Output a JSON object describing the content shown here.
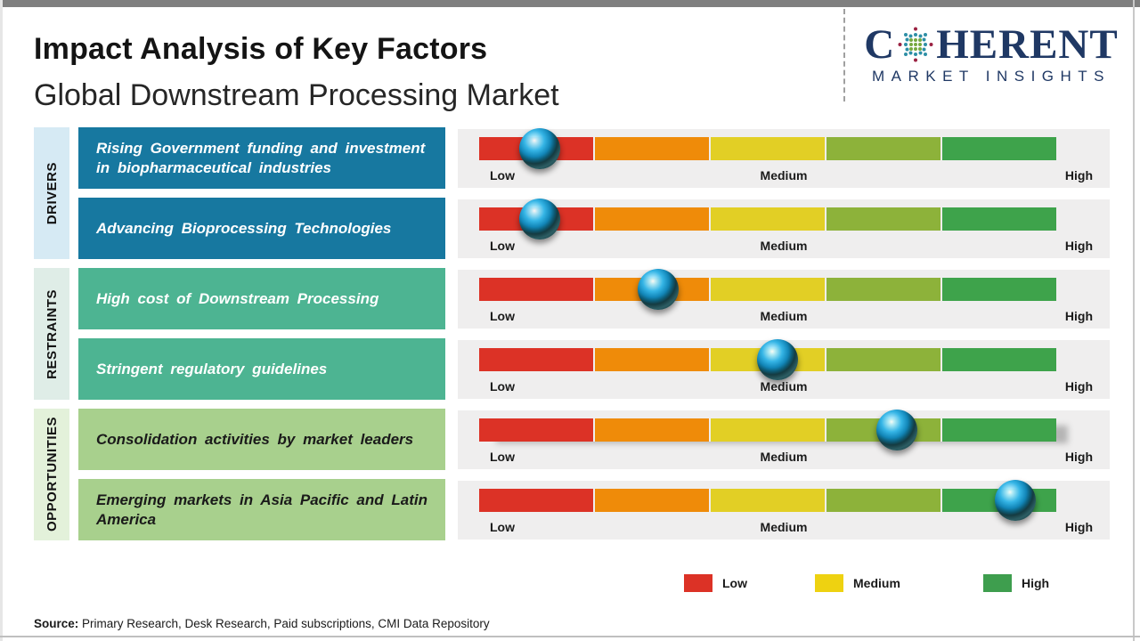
{
  "header": {
    "title": "Impact Analysis of Key Factors",
    "subtitle": "Global Downstream Processing Market",
    "logo": {
      "brand_left": "C",
      "brand_right": "HERENT",
      "tagline": "MARKET INSIGHTS",
      "brand_color": "#1f3864"
    }
  },
  "categories": [
    {
      "label": "DRIVERS",
      "band_color": "#d6eaf4"
    },
    {
      "label": "RESTRAINTS",
      "band_color": "#dfede7"
    },
    {
      "label": "OPPORTUNITIES",
      "band_color": "#e3f1da"
    }
  ],
  "factors": [
    {
      "category": "DRIVERS",
      "text": "Rising Government funding and investment in biopharmaceutical industries",
      "box_color": "#1778a0",
      "text_color": "#ffffff",
      "impact_percent": 10.5
    },
    {
      "category": "DRIVERS",
      "text": "Advancing Bioprocessing Technologies",
      "box_color": "#1778a0",
      "text_color": "#ffffff",
      "impact_percent": 10.5
    },
    {
      "category": "RESTRAINTS",
      "text": "High cost of Downstream Processing",
      "box_color": "#4db492",
      "text_color": "#ffffff",
      "impact_percent": 31.0
    },
    {
      "category": "RESTRAINTS",
      "text": "Stringent regulatory guidelines",
      "box_color": "#4db492",
      "text_color": "#ffffff",
      "impact_percent": 51.7
    },
    {
      "category": "OPPORTUNITIES",
      "text": "Consolidation activities by market leaders",
      "box_color": "#a8d08d",
      "text_color": "#1a1a1a",
      "impact_percent": 72.4
    },
    {
      "category": "OPPORTUNITIES",
      "text": "Emerging markets in Asia Pacific and Latin America",
      "box_color": "#a8d08d",
      "text_color": "#1a1a1a",
      "impact_percent": 92.9
    }
  ],
  "scale": {
    "labels": [
      "Low",
      "Medium",
      "High"
    ],
    "segment_colors": [
      "#dc3226",
      "#ef8b09",
      "#e2cf25",
      "#8db23a",
      "#3ea34b"
    ],
    "marker_color": "#2ba8dc",
    "track_background": "#efeeee"
  },
  "legend": [
    {
      "label": "Low",
      "color": "#dc3226"
    },
    {
      "label": "Medium",
      "color": "#eed211"
    },
    {
      "label": "High",
      "color": "#3e9e4e"
    }
  ],
  "source": {
    "prefix": "Source:",
    "text": " Primary Research, Desk Research, Paid subscriptions, CMI Data Repository"
  }
}
